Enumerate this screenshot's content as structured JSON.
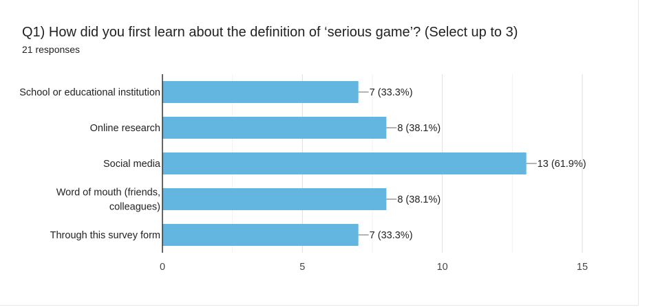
{
  "question": {
    "title": "Q1) How did you first learn about the definition of ‘serious game’?   (Select up to 3)",
    "responses": "21 responses"
  },
  "chart_data": {
    "type": "bar",
    "orientation": "horizontal",
    "categories": [
      [
        "School or educational institution"
      ],
      [
        "Online research"
      ],
      [
        "Social media"
      ],
      [
        "Word of mouth (friends,",
        "colleagues)"
      ],
      [
        "Through this survey form"
      ]
    ],
    "values": [
      7,
      8,
      13,
      8,
      7
    ],
    "data_labels": [
      "7 (33.3%)",
      "8 (38.1%)",
      "13 (61.9%)",
      "8 (38.1%)",
      "7 (33.3%)"
    ],
    "xlim": [
      0,
      15
    ],
    "xticks": [
      0,
      5,
      10,
      15
    ],
    "grid": true,
    "bar_color": "#62b6e0"
  }
}
